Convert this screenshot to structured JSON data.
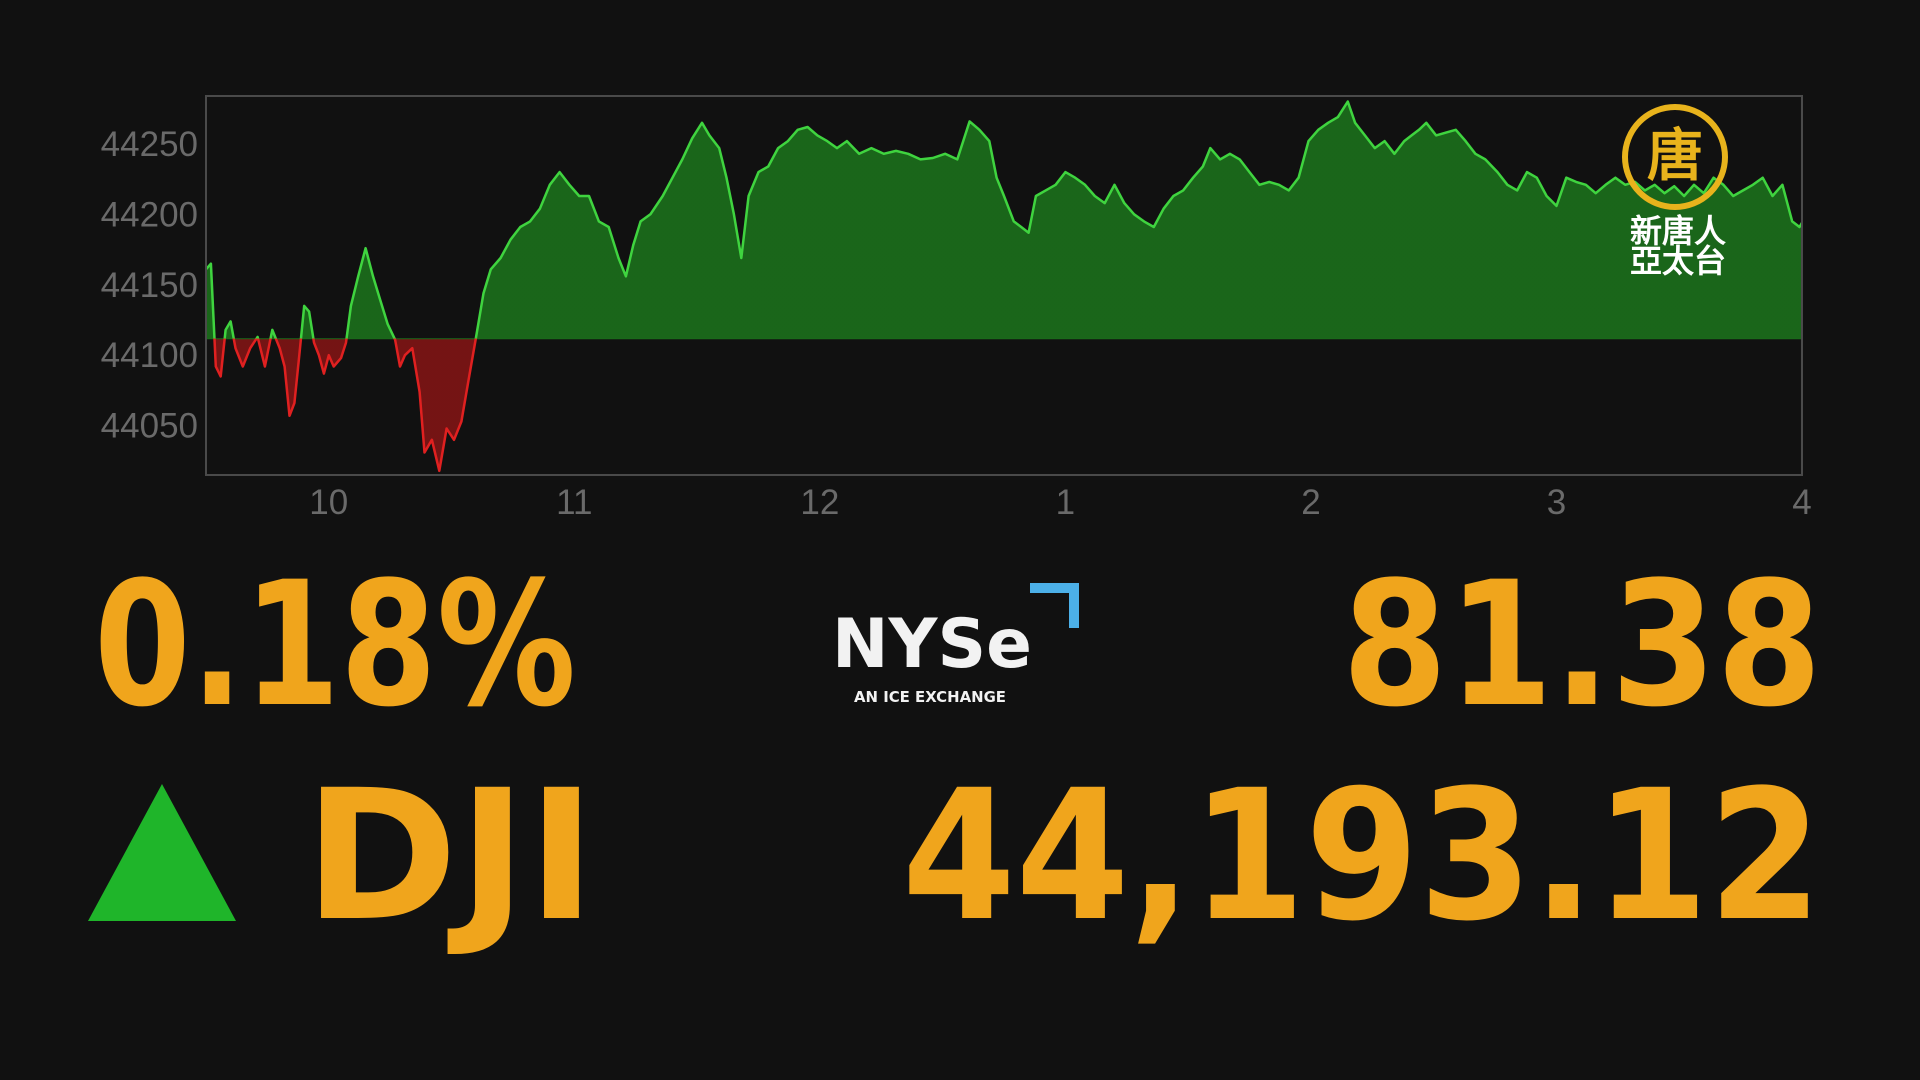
{
  "chart_data": {
    "type": "line",
    "x": [
      9.5,
      9.52,
      9.54,
      9.56,
      9.58,
      9.6,
      9.62,
      9.65,
      9.68,
      9.71,
      9.74,
      9.77,
      9.8,
      9.82,
      9.84,
      9.86,
      9.88,
      9.9,
      9.92,
      9.94,
      9.96,
      9.98,
      10,
      10.02,
      10.05,
      10.07,
      10.09,
      10.12,
      10.15,
      10.18,
      10.21,
      10.24,
      10.27,
      10.29,
      10.31,
      10.34,
      10.37,
      10.39,
      10.42,
      10.45,
      10.48,
      10.51,
      10.54,
      10.57,
      10.6,
      10.63,
      10.66,
      10.7,
      10.74,
      10.78,
      10.82,
      10.86,
      10.9,
      10.94,
      10.98,
      11.02,
      11.06,
      11.1,
      11.14,
      11.18,
      11.21,
      11.24,
      11.27,
      11.31,
      11.36,
      11.4,
      11.44,
      11.48,
      11.52,
      11.55,
      11.59,
      11.62,
      11.65,
      11.68,
      11.71,
      11.75,
      11.79,
      11.83,
      11.87,
      11.91,
      11.95,
      11.99,
      12.03,
      12.07,
      12.11,
      12.16,
      12.21,
      12.26,
      12.31,
      12.36,
      12.41,
      12.46,
      12.51,
      12.56,
      12.61,
      12.65,
      12.69,
      12.72,
      12.75,
      12.79,
      12.82,
      12.85,
      12.88,
      12.92,
      12.96,
      13,
      13.04,
      13.08,
      13.12,
      13.16,
      13.2,
      13.24,
      13.28,
      13.32,
      13.36,
      13.4,
      13.44,
      13.48,
      13.52,
      13.56,
      13.59,
      13.63,
      13.67,
      13.71,
      13.75,
      13.79,
      13.83,
      13.87,
      13.91,
      13.95,
      13.99,
      14.03,
      14.07,
      14.11,
      14.15,
      14.18,
      14.22,
      14.26,
      14.3,
      14.34,
      14.38,
      14.41,
      14.44,
      14.47,
      14.51,
      14.55,
      14.59,
      14.63,
      14.67,
      14.71,
      14.76,
      14.8,
      14.84,
      14.88,
      14.92,
      14.96,
      15,
      15.04,
      15.08,
      15.12,
      15.16,
      15.2,
      15.24,
      15.28,
      15.32,
      15.36,
      15.4,
      15.44,
      15.48,
      15.52,
      15.56,
      15.6,
      15.64,
      15.68,
      15.72,
      15.76,
      15.8,
      15.84,
      15.88,
      15.92,
      15.96,
      15.99,
      16
    ],
    "series": [
      {
        "color": "#3fd43f",
        "down_color": "#e02020",
        "values": [
          44161,
          44165,
          44092,
          44085,
          44118,
          44124,
          44105,
          44092,
          44105,
          44113,
          44092,
          44118,
          44105,
          44092,
          44057,
          44066,
          44100,
          44135,
          44131,
          44109,
          44100,
          44087,
          44100,
          44092,
          44098,
          44109,
          44135,
          44156,
          44176,
          44156,
          44139,
          44122,
          44111,
          44092,
          44100,
          44105,
          44074,
          44031,
          44040,
          44018,
          44048,
          44040,
          44053,
          44083,
          44113,
          44144,
          44161,
          44169,
          44182,
          44191,
          44195,
          44204,
          44221,
          44230,
          44221,
          44213,
          44213,
          44195,
          44191,
          44169,
          44156,
          44178,
          44195,
          44200,
          44213,
          44226,
          44239,
          44254,
          44265,
          44256,
          44247,
          44226,
          44200,
          44169,
          44213,
          44230,
          44234,
          44247,
          44252,
          44260,
          44262,
          44256,
          44252,
          44247,
          44252,
          44243,
          44247,
          44243,
          44245,
          44243,
          44239,
          44240,
          44243,
          44239,
          44266,
          44260,
          44252,
          44226,
          44213,
          44195,
          44191,
          44187,
          44213,
          44217,
          44221,
          44230,
          44226,
          44221,
          44213,
          44208,
          44221,
          44208,
          44200,
          44195,
          44191,
          44204,
          44213,
          44217,
          44226,
          44234,
          44247,
          44239,
          44243,
          44239,
          44230,
          44221,
          44223,
          44221,
          44217,
          44226,
          44252,
          44260,
          44265,
          44269,
          44280,
          44265,
          44256,
          44247,
          44252,
          44243,
          44252,
          44256,
          44260,
          44265,
          44256,
          44258,
          44260,
          44252,
          44243,
          44239,
          44230,
          44221,
          44217,
          44230,
          44226,
          44213,
          44206,
          44226,
          44223,
          44221,
          44215,
          44221,
          44226,
          44221,
          44223,
          44217,
          44221,
          44215,
          44220,
          44213,
          44221,
          44215,
          44226,
          44221,
          44213,
          44217,
          44221,
          44226,
          44213,
          44221,
          44195,
          44191,
          44194
        ]
      }
    ],
    "baseline": 44111.74,
    "xlim": [
      9.5,
      16
    ],
    "xticks": [
      10,
      11,
      12,
      {
        "value": 13,
        "label": "1"
      },
      {
        "value": 14,
        "label": "2"
      },
      {
        "value": 15,
        "label": "3"
      },
      {
        "value": 16,
        "label": "4"
      }
    ],
    "ylim": [
      44015,
      44284
    ],
    "yticks": [
      44050,
      44100,
      44150,
      44200,
      44250
    ],
    "grid": false
  },
  "quote": {
    "change_percent": "0.18%",
    "change": "81.38",
    "symbol": "DJI",
    "price": "44,193.12"
  },
  "exchange_logo": {
    "name": "NYSe",
    "tagline": "AN ICE EXCHANGE"
  },
  "channel_logo": {
    "emblem": "唐",
    "line1": "新唐人",
    "line2": "亞太台"
  }
}
